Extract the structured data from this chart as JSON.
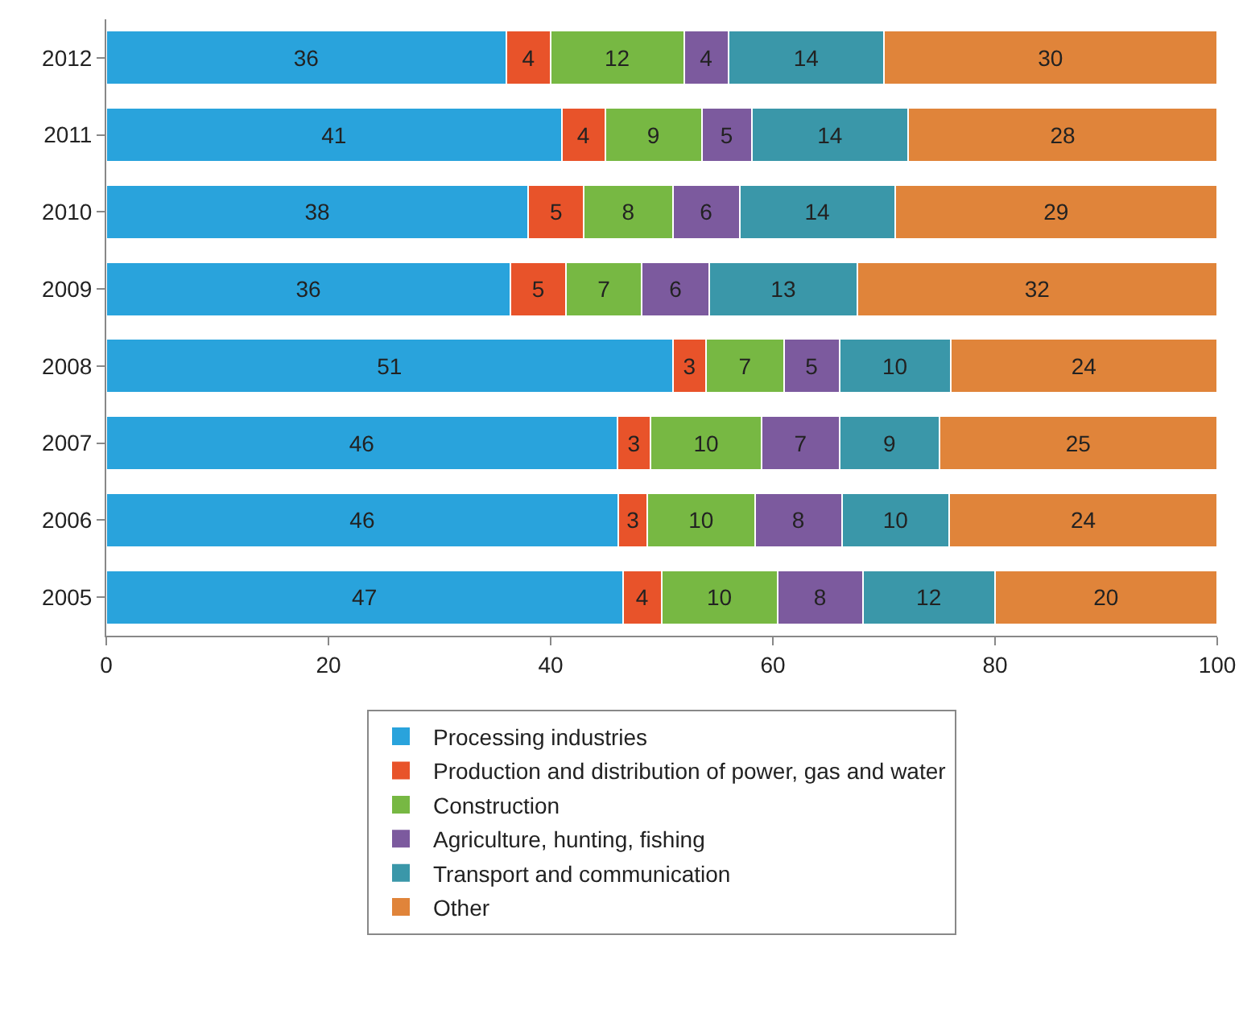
{
  "chart_data": {
    "type": "bar",
    "orientation": "horizontal",
    "stacked": true,
    "categories": [
      "2012",
      "2011",
      "2010",
      "2009",
      "2008",
      "2007",
      "2006",
      "2005"
    ],
    "series": [
      {
        "name": "Processing industries",
        "color": "#29a3dc",
        "values": [
          36,
          41,
          38,
          36.4,
          51,
          46,
          46.1,
          46.5
        ],
        "value_labels": [
          "36",
          "41",
          "38",
          "36",
          "51",
          "46",
          "46",
          "47"
        ]
      },
      {
        "name": "Production and distribution of power, gas and water",
        "color": "#e8532a",
        "values": [
          4,
          3.9,
          5,
          5,
          3,
          3,
          2.6,
          3.5
        ],
        "value_labels": [
          "4",
          "4",
          "5",
          "5",
          "3",
          "3",
          "3",
          "4"
        ]
      },
      {
        "name": "Construction",
        "color": "#77b843",
        "values": [
          12,
          8.7,
          8,
          6.8,
          7,
          10,
          9.7,
          10.4
        ],
        "value_labels": [
          "12",
          "9",
          "8",
          "7",
          "7",
          "10",
          "10",
          "10"
        ]
      },
      {
        "name": "Agriculture, hunting, fishing",
        "color": "#7c5a9e",
        "values": [
          4,
          4.5,
          6,
          6.1,
          5,
          7,
          7.8,
          7.7
        ],
        "value_labels": [
          "4",
          "5",
          "6",
          "6",
          "5",
          "7",
          "8",
          "8"
        ]
      },
      {
        "name": "Transport and communication",
        "color": "#3a97a9",
        "values": [
          14,
          14.1,
          14,
          13.3,
          10,
          9,
          9.7,
          11.9
        ],
        "value_labels": [
          "14",
          "14",
          "14",
          "13",
          "10",
          "9",
          "10",
          "12"
        ]
      },
      {
        "name": "Other",
        "color": "#e0843a",
        "values": [
          30,
          27.8,
          29,
          32.4,
          24,
          25,
          24.1,
          20
        ],
        "value_labels": [
          "30",
          "28",
          "29",
          "32",
          "24",
          "25",
          "24",
          "20"
        ]
      }
    ],
    "xlim": [
      0,
      100
    ],
    "xticks": [
      0,
      20,
      40,
      60,
      80,
      100
    ],
    "grid": false,
    "legend": "bottom"
  }
}
